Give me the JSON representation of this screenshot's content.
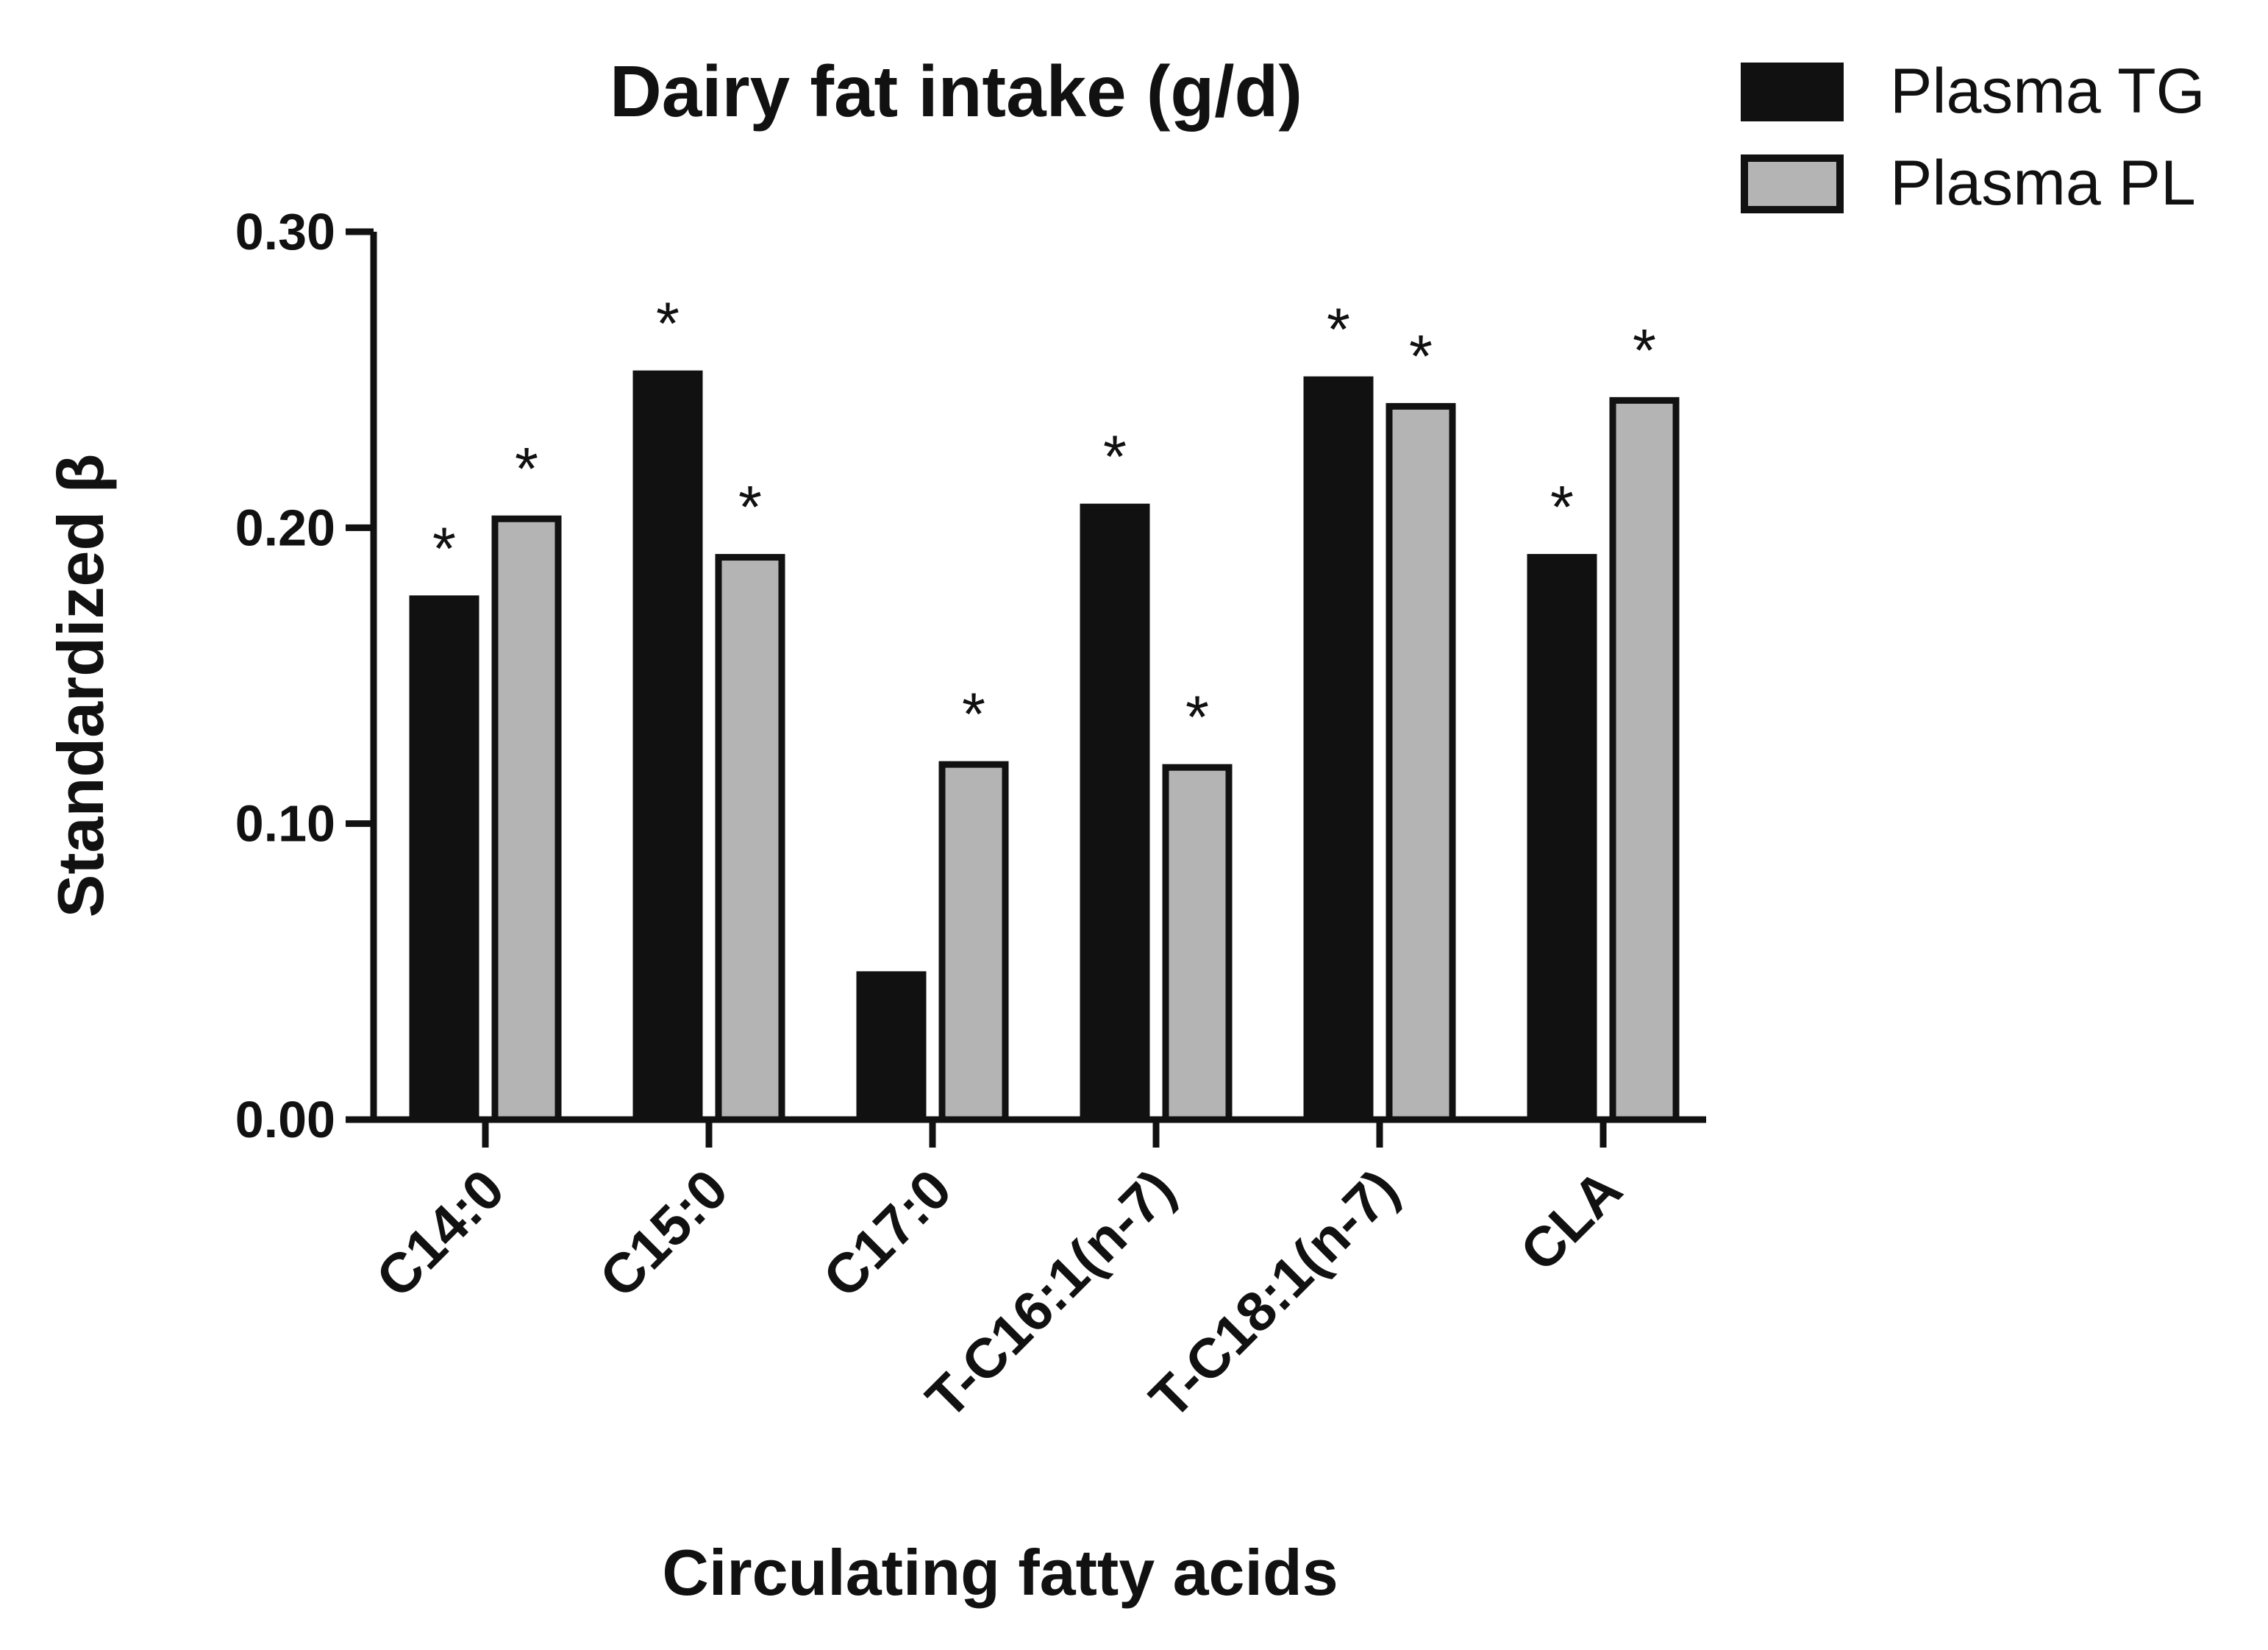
{
  "chart_data": {
    "type": "bar",
    "title": "Dairy fat intake (g/d)",
    "xlabel": "Circulating fatty acids",
    "ylabel": "Standardized β",
    "ylim": [
      0,
      0.3
    ],
    "yticks": [
      "0.00",
      "0.10",
      "0.20",
      "0.30"
    ],
    "categories": [
      "C14:0",
      "C15:0",
      "C17:0",
      "T-C16:1(n-7)",
      "T-C18:1(n-7)",
      "CLA"
    ],
    "series": [
      {
        "name": "Plasma TG",
        "color": "#111111",
        "values": [
          0.176,
          0.252,
          0.049,
          0.207,
          0.25,
          0.19
        ],
        "significance": [
          "*",
          "*",
          "",
          "*",
          "*",
          "*"
        ]
      },
      {
        "name": "Plasma PL",
        "color": "#b4b4b4",
        "values": [
          0.203,
          0.19,
          0.12,
          0.119,
          0.241,
          0.243
        ],
        "significance": [
          "*",
          "*",
          "*",
          "*",
          "*",
          "*"
        ]
      }
    ],
    "legend_position": "top-right",
    "grid": false
  }
}
